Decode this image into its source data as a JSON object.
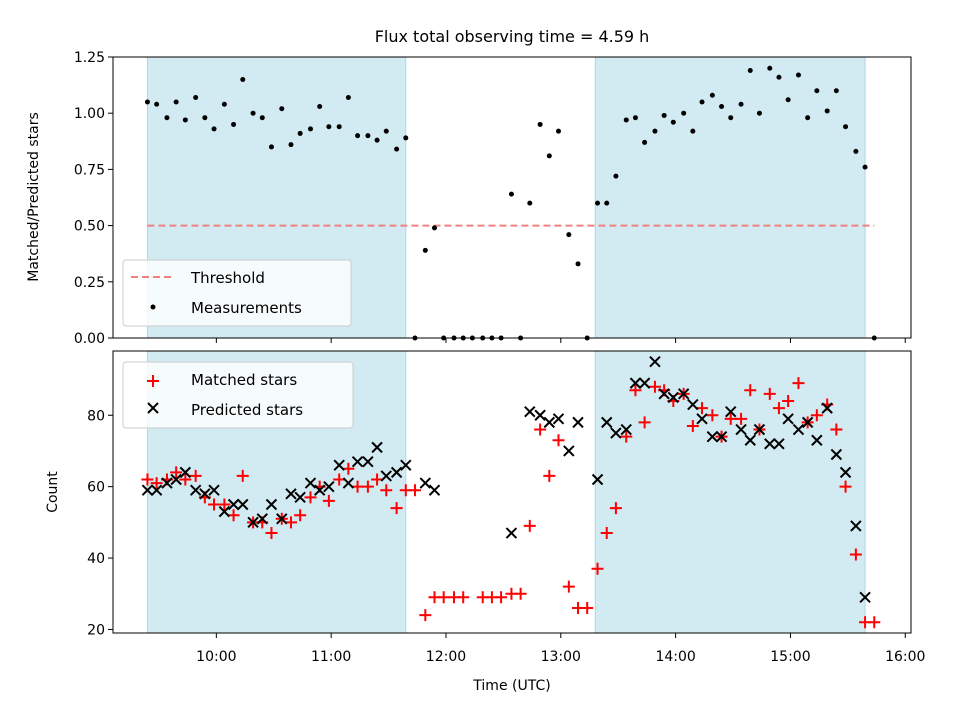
{
  "chart_data": {
    "type": "scatter",
    "title": "Flux total observing time = 4.59 h",
    "xlabel": "Time (UTC)",
    "x_unit": "hours",
    "xlim": [
      9.1,
      16.05
    ],
    "x_ticks": [
      10,
      11,
      12,
      13,
      14,
      15,
      16
    ],
    "x_tick_labels": [
      "10:00",
      "11:00",
      "12:00",
      "13:00",
      "14:00",
      "15:00",
      "16:00"
    ],
    "shaded_regions": [
      [
        9.4,
        11.65
      ],
      [
        13.3,
        15.65
      ]
    ],
    "shade_color": "#add8e6",
    "panels": [
      {
        "ylabel": "Matched/Predicted stars",
        "ylim": [
          0,
          1.25
        ],
        "y_ticks": [
          0,
          0.25,
          0.5,
          0.75,
          1.0,
          1.25
        ],
        "y_tick_labels": [
          "0.00",
          "0.25",
          "0.50",
          "0.75",
          "1.00",
          "1.25"
        ],
        "legend_position": "lower-left",
        "threshold": {
          "name": "Threshold",
          "value": 0.5,
          "color": "#f08080"
        },
        "measurements": {
          "name": "Measurements",
          "color": "#000000",
          "x": [
            9.4,
            9.48,
            9.57,
            9.65,
            9.73,
            9.82,
            9.9,
            9.98,
            10.07,
            10.15,
            10.23,
            10.32,
            10.4,
            10.48,
            10.57,
            10.65,
            10.73,
            10.82,
            10.9,
            10.98,
            11.07,
            11.15,
            11.23,
            11.32,
            11.4,
            11.48,
            11.57,
            11.65,
            11.73,
            11.82,
            11.9,
            11.98,
            12.07,
            12.15,
            12.23,
            12.32,
            12.4,
            12.48,
            12.57,
            12.65,
            12.73,
            12.82,
            12.9,
            12.98,
            13.07,
            13.15,
            13.23,
            13.32,
            13.4,
            13.48,
            13.57,
            13.65,
            13.73,
            13.82,
            13.9,
            13.98,
            14.07,
            14.15,
            14.23,
            14.32,
            14.4,
            14.48,
            14.57,
            14.65,
            14.73,
            14.82,
            14.9,
            14.98,
            15.07,
            15.15,
            15.23,
            15.32,
            15.4,
            15.48,
            15.57,
            15.65,
            15.73
          ],
          "y": [
            1.05,
            1.04,
            0.98,
            1.05,
            0.97,
            1.07,
            0.98,
            0.93,
            1.04,
            0.95,
            1.15,
            1.0,
            0.98,
            0.85,
            1.02,
            0.86,
            0.91,
            0.93,
            1.03,
            0.94,
            0.94,
            1.07,
            0.9,
            0.9,
            0.88,
            0.92,
            0.84,
            0.89,
            0.0,
            0.39,
            0.49,
            0.0,
            0.0,
            0.0,
            0.0,
            0.0,
            0.0,
            0.0,
            0.64,
            0.0,
            0.6,
            0.95,
            0.81,
            0.92,
            0.46,
            0.33,
            0.0,
            0.6,
            0.6,
            0.72,
            0.97,
            0.98,
            0.87,
            0.92,
            0.99,
            0.96,
            1.0,
            0.92,
            1.05,
            1.08,
            1.03,
            0.98,
            1.04,
            1.19,
            1.0,
            1.2,
            1.16,
            1.06,
            1.17,
            0.98,
            1.1,
            1.01,
            1.1,
            0.94,
            0.83,
            0.76,
            0.0
          ]
        }
      },
      {
        "ylabel": "Count",
        "ylim": [
          19,
          98
        ],
        "y_ticks": [
          20,
          40,
          60,
          80
        ],
        "y_tick_labels": [
          "20",
          "40",
          "60",
          "80"
        ],
        "legend_position": "upper-left",
        "series": [
          {
            "name": "Matched stars",
            "marker": "+",
            "color": "#ff0000",
            "x": [
              9.4,
              9.48,
              9.57,
              9.65,
              9.73,
              9.82,
              9.9,
              9.98,
              10.07,
              10.15,
              10.23,
              10.32,
              10.4,
              10.48,
              10.57,
              10.65,
              10.73,
              10.82,
              10.9,
              10.98,
              11.07,
              11.15,
              11.23,
              11.32,
              11.4,
              11.48,
              11.57,
              11.65,
              11.73,
              11.82,
              11.9,
              11.98,
              12.07,
              12.15,
              12.32,
              12.4,
              12.48,
              12.57,
              12.65,
              12.73,
              12.82,
              12.9,
              12.98,
              13.07,
              13.15,
              13.23,
              13.32,
              13.4,
              13.48,
              13.57,
              13.65,
              13.73,
              13.82,
              13.9,
              13.98,
              14.07,
              14.15,
              14.23,
              14.32,
              14.4,
              14.48,
              14.57,
              14.65,
              14.73,
              14.82,
              14.9,
              14.98,
              15.07,
              15.15,
              15.23,
              15.32,
              15.4,
              15.48,
              15.57,
              15.65,
              15.73
            ],
            "y": [
              62,
              61,
              62,
              64,
              62,
              63,
              57,
              55,
              55,
              52,
              63,
              50,
              50,
              47,
              51,
              50,
              52,
              57,
              60,
              56,
              62,
              65,
              60,
              60,
              62,
              59,
              54,
              59,
              59,
              24,
              29,
              29,
              29,
              29,
              29,
              29,
              29,
              30,
              30,
              49,
              76,
              63,
              73,
              32,
              26,
              26,
              37,
              47,
              54,
              74,
              87,
              78,
              88,
              87,
              84,
              86,
              77,
              82,
              80,
              74,
              79,
              79,
              87,
              76,
              86,
              82,
              84,
              89,
              78,
              80,
              83,
              76,
              60,
              41,
              22,
              22
            ]
          },
          {
            "name": "Predicted stars",
            "marker": "x",
            "color": "#000000",
            "x": [
              9.4,
              9.48,
              9.57,
              9.65,
              9.73,
              9.82,
              9.9,
              9.98,
              10.07,
              10.15,
              10.23,
              10.32,
              10.4,
              10.48,
              10.57,
              10.65,
              10.73,
              10.82,
              10.9,
              10.98,
              11.07,
              11.15,
              11.23,
              11.32,
              11.4,
              11.48,
              11.57,
              11.65,
              11.82,
              11.9,
              12.57,
              12.73,
              12.82,
              12.9,
              12.98,
              13.07,
              13.15,
              13.32,
              13.4,
              13.48,
              13.57,
              13.65,
              13.73,
              13.82,
              13.9,
              13.98,
              14.07,
              14.15,
              14.23,
              14.32,
              14.4,
              14.48,
              14.57,
              14.65,
              14.73,
              14.82,
              14.9,
              14.98,
              15.07,
              15.15,
              15.23,
              15.32,
              15.4,
              15.48,
              15.57,
              15.65
            ],
            "y": [
              59,
              59,
              61,
              62,
              64,
              59,
              58,
              59,
              53,
              55,
              55,
              50,
              51,
              55,
              51,
              58,
              57,
              61,
              59,
              60,
              66,
              61,
              67,
              67,
              71,
              63,
              64,
              66,
              61,
              59,
              47,
              81,
              80,
              78,
              79,
              70,
              78,
              62,
              78,
              75,
              76,
              89,
              89,
              95,
              86,
              85,
              86,
              83,
              79,
              74,
              74,
              81,
              76,
              73,
              76,
              72,
              72,
              79,
              76,
              78,
              73,
              82,
              69,
              64,
              49,
              29
            ]
          }
        ]
      }
    ]
  }
}
